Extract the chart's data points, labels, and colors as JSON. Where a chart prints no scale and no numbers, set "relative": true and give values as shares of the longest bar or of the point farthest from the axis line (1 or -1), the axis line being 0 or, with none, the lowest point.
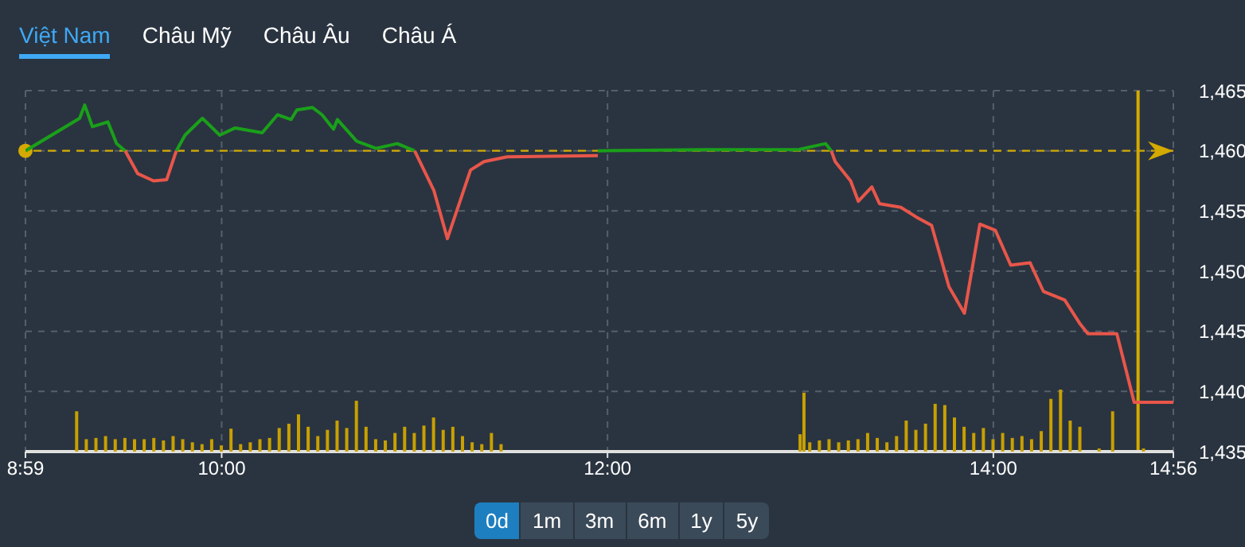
{
  "chart_data": [
    {
      "type": "line",
      "annotations": [
        "Việt Nam",
        "Châu Mỹ",
        "Châu Âu",
        "Châu Á",
        "0d",
        "1m",
        "3m",
        "6m",
        "1y",
        "5y"
      ],
      "xlim": [
        8.983,
        14.933
      ],
      "xticks": [
        {
          "value": 8.983,
          "label": "8:59"
        },
        {
          "value": 10,
          "label": "10:00"
        },
        {
          "value": 12,
          "label": "12:00"
        },
        {
          "value": 14,
          "label": "14:00"
        },
        {
          "value": 14.933,
          "label": "14:56"
        }
      ],
      "ylim": [
        1435,
        1465
      ],
      "yticks": [
        {
          "value": 1435,
          "label": "1,435"
        },
        {
          "value": 1440,
          "label": "1,440"
        },
        {
          "value": 1445,
          "label": "1,445"
        },
        {
          "value": 1450,
          "label": "1,450"
        },
        {
          "value": 1455,
          "label": "1,455"
        },
        {
          "value": 1460,
          "label": "1,460"
        },
        {
          "value": 1465,
          "label": "1,465"
        }
      ],
      "grid": true,
      "legend": false,
      "marker": "none",
      "line_style": "solid",
      "ref_lines": [
        {
          "axis": "y",
          "value": 1460,
          "color": "#d4aa00",
          "line_style": "dashed"
        },
        {
          "axis": "x",
          "value": 14.75,
          "color": "#d4aa00",
          "line_style": "solid"
        }
      ],
      "series": [
        {
          "color": "#1aa01a",
          "x": [
            8.983,
            9.264,
            9.29,
            9.33,
            9.37,
            9.41,
            9.455,
            9.5,
            9.6,
            9.765,
            9.81,
            9.9,
            9.99,
            10.07,
            10.21,
            10.29,
            10.36,
            10.39,
            10.47,
            10.52,
            10.58,
            10.6,
            10.7,
            10.8,
            10.91,
            11.0,
            11.5,
            11.95,
            12.5,
            12.99,
            13.13,
            13.16
          ],
          "values": [
            1460,
            1462.7,
            1463.8,
            1462,
            1462.2,
            1462.4,
            1460.6,
            1460,
            null,
            1460,
            1461.3,
            1462.7,
            1461.3,
            1461.9,
            1461.5,
            1463,
            1462.6,
            1463.4,
            1463.6,
            1463,
            1461.8,
            1462.6,
            1460.8,
            1460.2,
            1460.6,
            1460,
            null,
            1460,
            1460.1,
            1460.1,
            1460.6,
            1460
          ]
        },
        {
          "color": "#e8564a",
          "x": [
            9.5,
            9.565,
            9.647,
            9.715,
            9.765,
            9.9,
            11.0,
            11.1,
            11.17,
            11.29,
            11.36,
            11.48,
            11.95,
            12.5,
            13.16,
            13.18,
            13.26,
            13.3,
            13.37,
            13.41,
            13.52,
            13.6,
            13.68,
            13.77,
            13.85,
            13.93,
            14.01,
            14.09,
            14.19,
            14.26,
            14.37,
            14.45,
            14.49,
            14.64,
            14.73,
            14.933
          ],
          "values": [
            1460,
            1458.1,
            1457.5,
            1457.6,
            1460,
            null,
            1460,
            1456.7,
            1452.7,
            1458.4,
            1459.1,
            1459.5,
            1459.6,
            null,
            1460,
            1459.1,
            1457.5,
            1455.8,
            1457,
            1455.6,
            1455.3,
            1454.5,
            1453.8,
            1448.7,
            1446.5,
            1453.9,
            1453.4,
            1450.5,
            1450.7,
            1448.3,
            1447.6,
            1445.6,
            1444.8,
            1444.8,
            1439.1,
            1439.1
          ]
        }
      ]
    },
    {
      "type": "bar",
      "relative": true,
      "tick_labels": false,
      "xlim": [
        8.983,
        14.933
      ],
      "color": "#c8a000",
      "x": [
        9.25,
        9.3,
        9.35,
        9.4,
        9.45,
        9.5,
        9.55,
        9.6,
        9.65,
        9.7,
        9.75,
        9.8,
        9.85,
        9.9,
        9.95,
        10.0,
        10.05,
        10.1,
        10.15,
        10.2,
        10.25,
        10.3,
        10.35,
        10.4,
        10.45,
        10.5,
        10.55,
        10.6,
        10.65,
        10.7,
        10.75,
        10.8,
        10.85,
        10.9,
        10.95,
        11.0,
        11.05,
        11.1,
        11.15,
        11.2,
        11.25,
        11.3,
        11.35,
        11.4,
        11.45,
        13.0,
        13.02,
        13.05,
        13.1,
        13.15,
        13.2,
        13.25,
        13.3,
        13.35,
        13.4,
        13.45,
        13.5,
        13.55,
        13.6,
        13.65,
        13.7,
        13.75,
        13.8,
        13.85,
        13.9,
        13.95,
        14.0,
        14.05,
        14.1,
        14.15,
        14.2,
        14.25,
        14.3,
        14.35,
        14.4,
        14.45,
        14.55,
        14.62,
        14.78
      ],
      "values": [
        0.65,
        0.2,
        0.22,
        0.25,
        0.2,
        0.22,
        0.2,
        0.2,
        0.22,
        0.18,
        0.25,
        0.2,
        0.15,
        0.12,
        0.2,
        0.1,
        0.37,
        0.12,
        0.15,
        0.2,
        0.22,
        0.38,
        0.45,
        0.6,
        0.4,
        0.25,
        0.35,
        0.5,
        0.38,
        0.82,
        0.4,
        0.2,
        0.18,
        0.3,
        0.4,
        0.3,
        0.42,
        0.55,
        0.35,
        0.4,
        0.25,
        0.15,
        0.12,
        0.3,
        0.12,
        0.28,
        0.95,
        0.15,
        0.18,
        0.2,
        0.15,
        0.18,
        0.2,
        0.3,
        0.22,
        0.15,
        0.25,
        0.5,
        0.35,
        0.45,
        0.77,
        0.75,
        0.55,
        0.4,
        0.3,
        0.38,
        0.2,
        0.3,
        0.22,
        0.25,
        0.2,
        0.33,
        0.85,
        1.0,
        0.5,
        0.4,
        0.05,
        0.65,
        0.05
      ]
    }
  ]
}
